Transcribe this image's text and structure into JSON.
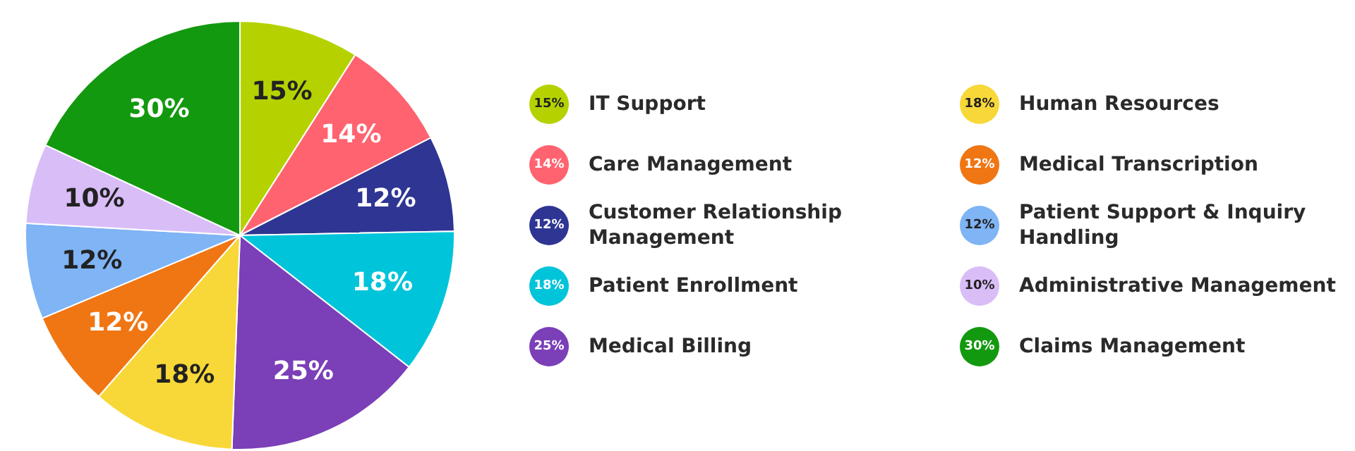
{
  "chart_data": {
    "type": "pie",
    "categories": [
      "IT Support",
      "Care Management",
      "Customer Relationship Management",
      "Patient Enrollment",
      "Medical Billing",
      "Human Resources",
      "Medical Transcription",
      "Patient Support & Inquiry Handling",
      "Administrative Management",
      "Claims Management"
    ],
    "values": [
      15,
      14,
      12,
      18,
      25,
      18,
      12,
      12,
      10,
      30
    ],
    "value_labels": [
      "15%",
      "14%",
      "12%",
      "18%",
      "25%",
      "18%",
      "12%",
      "12%",
      "10%",
      "30%"
    ],
    "colors": [
      "#b5d200",
      "#ff6370",
      "#2e3592",
      "#00c4d9",
      "#7b3fb8",
      "#f8d838",
      "#f07613",
      "#7fb4f5",
      "#d9bdf7",
      "#13990f"
    ],
    "legend": "right"
  }
}
